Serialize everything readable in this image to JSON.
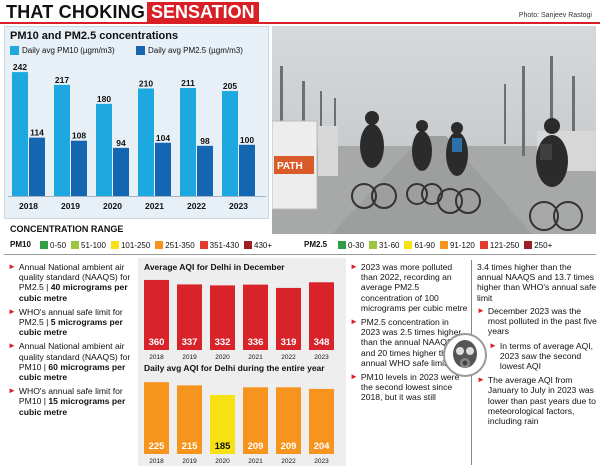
{
  "header": {
    "title_part1": "THAT CHOKING",
    "title_part2": "SENSATION",
    "photo_credit": "Photo: Sanjeev Rastogi"
  },
  "pm_chart": {
    "title": "PM10 and PM2.5 concentrations",
    "legend_pm10": "Daily avg PM10 (µgm/m3)",
    "legend_pm25": "Daily avg PM2.5 (µgm/m3)"
  },
  "colors": {
    "pm10": "#1ea8e0",
    "pm25": "#1566b0",
    "aqi_dec": "#d8232a",
    "aqi_year": "#f7941d",
    "aqi_year_2020": "#f6e212",
    "brand_red": "#d81f26"
  },
  "concentration_range": {
    "title": "CONCENTRATION RANGE",
    "pm10_label": "PM10",
    "pm25_label": "PM2.5",
    "pm10": [
      {
        "label": "0-50",
        "color": "#2e9e48"
      },
      {
        "label": "51-100",
        "color": "#9cc63c"
      },
      {
        "label": "101-250",
        "color": "#f6e212"
      },
      {
        "label": "251-350",
        "color": "#f7941d"
      },
      {
        "label": "351-430",
        "color": "#e63a2e"
      },
      {
        "label": "430+",
        "color": "#9e1f24"
      }
    ],
    "pm25": [
      {
        "label": "0-30",
        "color": "#2e9e48"
      },
      {
        "label": "31-60",
        "color": "#9cc63c"
      },
      {
        "label": "61-90",
        "color": "#f6e212"
      },
      {
        "label": "91-120",
        "color": "#f7941d"
      },
      {
        "label": "121-250",
        "color": "#e63a2e"
      },
      {
        "label": "250+",
        "color": "#9e1f24"
      }
    ]
  },
  "left_notes": [
    {
      "text": "Annual National ambient air quality standard (NAAQS) for PM2.5 |",
      "bold": "40 micrograms per cubic metre"
    },
    {
      "text": "WHO's annual safe limit for PM2.5 |",
      "bold": "5 micrograms per cubic metre"
    },
    {
      "text": "Annual National ambient air quality standard (NAAQS) for PM10 |",
      "bold": "60 micrograms per cubic metre"
    },
    {
      "text": "WHO's annual safe limit for PM10 |",
      "bold": "15 micrograms per cubic metre"
    }
  ],
  "middle_notes": [
    "2023 was more polluted than 2022, recording an average PM2.5 concentration of 100 micrograms per cubic metre",
    "PM2.5 concentration in 2023 was 2.5 times higher than the annual NAAQS and 20 times higher than annual WHO safe limit",
    "PM10 levels in 2023 were the second lowest since 2018, but it was still"
  ],
  "right_notes": {
    "continuation": "3.4 times higher than the annual NAAQS and 13.7 times higher than WHO's annual safe limit",
    "items": [
      "December 2023 was the most polluted in the past five years",
      "In terms of average AQI, 2023 saw the second lowest AQI",
      "The average AQI from January to July in 2023 was lower than past years due to meteorological factors, including rain"
    ]
  },
  "chart_data": [
    {
      "type": "bar",
      "title": "PM10 and PM2.5 concentrations",
      "categories": [
        "2018",
        "2019",
        "2020",
        "2021",
        "2022",
        "2023"
      ],
      "series": [
        {
          "name": "Daily avg PM10 (µgm/m3)",
          "values": [
            242,
            217,
            180,
            210,
            211,
            205
          ],
          "color": "#1ea8e0"
        },
        {
          "name": "Daily avg PM2.5 (µgm/m3)",
          "values": [
            114,
            108,
            94,
            104,
            98,
            100
          ],
          "color": "#1566b0"
        }
      ],
      "ylim": [
        0,
        250
      ],
      "grid": false,
      "legend": "top"
    },
    {
      "type": "bar",
      "title": "Average AQI for Delhi in December",
      "categories": [
        "2018",
        "2019",
        "2020",
        "2021",
        "2022",
        "2023"
      ],
      "values": [
        360,
        337,
        332,
        336,
        319,
        348
      ],
      "ylim": [
        0,
        370
      ]
    },
    {
      "type": "bar",
      "title": "Daily avg AQI for Delhi during the entire year",
      "categories": [
        "2018",
        "2019",
        "2020",
        "2021",
        "2022",
        "2023"
      ],
      "values": [
        225,
        215,
        185,
        209,
        209,
        204
      ],
      "ylim": [
        0,
        235
      ]
    }
  ]
}
